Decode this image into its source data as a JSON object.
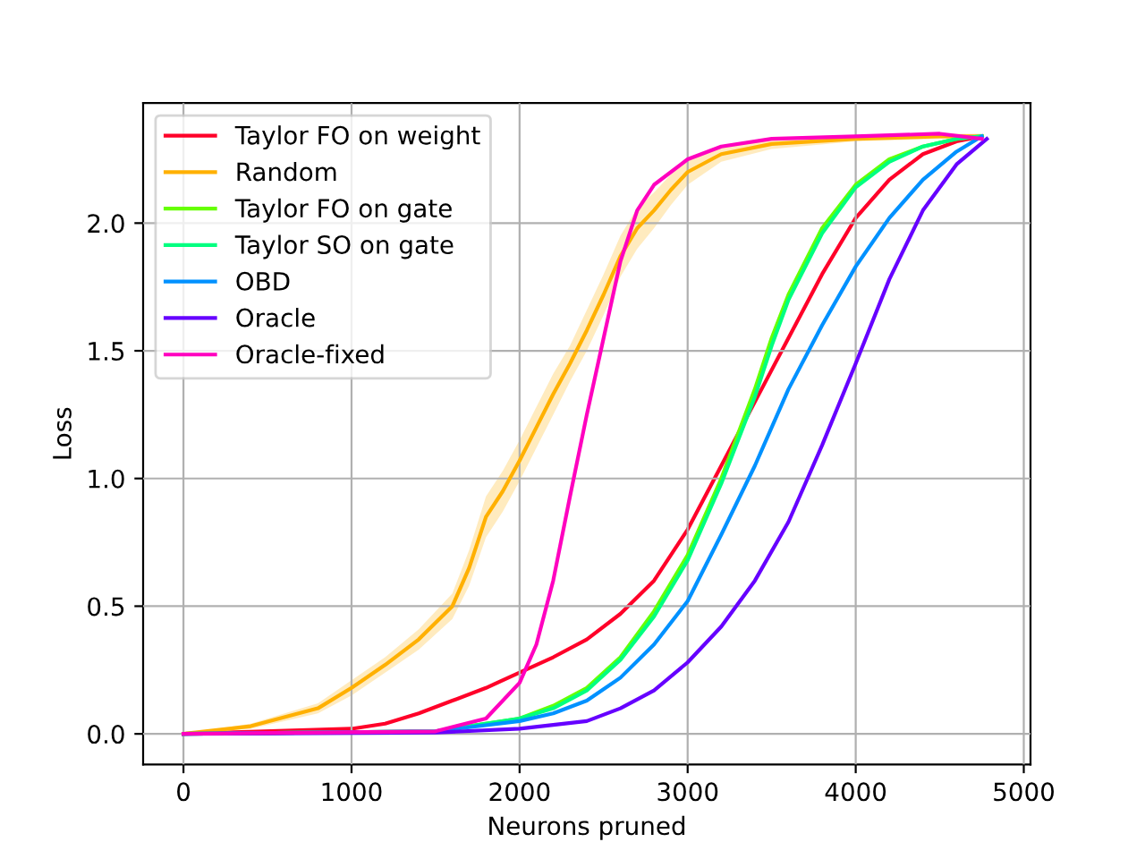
{
  "chart_data": {
    "type": "line",
    "xlabel": "Neurons pruned",
    "ylabel": "Loss",
    "xlim": [
      -240,
      5040
    ],
    "ylim": [
      -0.12,
      2.47
    ],
    "xticks": [
      0,
      1000,
      2000,
      3000,
      4000,
      5000
    ],
    "yticks": [
      {
        "value": 0,
        "label": "0.0"
      },
      {
        "value": 0.5,
        "label": "0.5"
      },
      {
        "value": 1,
        "label": "1.0"
      },
      {
        "value": 1.5,
        "label": "1.5"
      },
      {
        "value": 2,
        "label": "2.0"
      }
    ],
    "grid": true,
    "legend": "top left",
    "line_style": "solid",
    "marker": "none",
    "series": [
      {
        "name": "Taylor FO on weight",
        "color": "#ff0029",
        "x": [
          0,
          1000,
          1200,
          1400,
          1600,
          1800,
          2000,
          2200,
          2400,
          2600,
          2800,
          3000,
          3200,
          3400,
          3600,
          3800,
          4000,
          4200,
          4400,
          4600,
          4750
        ],
        "values": [
          0,
          0.02,
          0.04,
          0.08,
          0.13,
          0.18,
          0.24,
          0.3,
          0.37,
          0.47,
          0.6,
          0.8,
          1.05,
          1.3,
          1.55,
          1.8,
          2.02,
          2.17,
          2.27,
          2.32,
          2.34
        ]
      },
      {
        "name": "Random",
        "color": "#ffb000",
        "x": [
          0,
          400,
          800,
          1000,
          1200,
          1400,
          1600,
          1700,
          1800,
          1900,
          2000,
          2100,
          2200,
          2300,
          2400,
          2500,
          2600,
          2700,
          2800,
          2900,
          3000,
          3200,
          3500,
          4000,
          4500,
          4750
        ],
        "values": [
          0,
          0.03,
          0.1,
          0.18,
          0.27,
          0.37,
          0.5,
          0.65,
          0.85,
          0.95,
          1.07,
          1.2,
          1.33,
          1.45,
          1.58,
          1.72,
          1.87,
          1.98,
          2.05,
          2.13,
          2.2,
          2.27,
          2.31,
          2.33,
          2.34,
          2.34
        ],
        "lower": [
          0,
          0.02,
          0.08,
          0.15,
          0.24,
          0.33,
          0.45,
          0.58,
          0.77,
          0.87,
          0.99,
          1.12,
          1.25,
          1.38,
          1.5,
          1.64,
          1.79,
          1.9,
          1.98,
          2.07,
          2.15,
          2.24,
          2.29,
          2.32,
          2.33,
          2.33
        ],
        "upper": [
          0,
          0.04,
          0.12,
          0.21,
          0.3,
          0.41,
          0.55,
          0.72,
          0.93,
          1.03,
          1.15,
          1.28,
          1.41,
          1.52,
          1.66,
          1.8,
          1.95,
          2.06,
          2.12,
          2.19,
          2.25,
          2.3,
          2.33,
          2.34,
          2.35,
          2.35
        ]
      },
      {
        "name": "Taylor FO on gate",
        "color": "#66ff00",
        "x": [
          0,
          1500,
          2000,
          2200,
          2400,
          2600,
          2800,
          3000,
          3200,
          3400,
          3500,
          3600,
          3800,
          4000,
          4200,
          4400,
          4600,
          4750
        ],
        "values": [
          0,
          0.01,
          0.06,
          0.11,
          0.18,
          0.3,
          0.48,
          0.7,
          1.0,
          1.35,
          1.55,
          1.72,
          1.98,
          2.15,
          2.25,
          2.3,
          2.33,
          2.34
        ]
      },
      {
        "name": "Taylor SO on gate",
        "color": "#00ff80",
        "x": [
          0,
          1500,
          2000,
          2200,
          2400,
          2600,
          2800,
          3000,
          3200,
          3400,
          3500,
          3600,
          3800,
          4000,
          4200,
          4400,
          4600,
          4750
        ],
        "values": [
          0,
          0.01,
          0.06,
          0.1,
          0.17,
          0.29,
          0.46,
          0.68,
          0.98,
          1.32,
          1.52,
          1.7,
          1.96,
          2.14,
          2.24,
          2.3,
          2.33,
          2.34
        ]
      },
      {
        "name": "OBD",
        "color": "#0091ff",
        "x": [
          0,
          1500,
          2000,
          2200,
          2400,
          2600,
          2800,
          3000,
          3200,
          3400,
          3600,
          3800,
          4000,
          4200,
          4400,
          4600,
          4750
        ],
        "values": [
          0,
          0.01,
          0.05,
          0.08,
          0.13,
          0.22,
          0.35,
          0.52,
          0.78,
          1.05,
          1.35,
          1.6,
          1.83,
          2.02,
          2.17,
          2.28,
          2.34
        ]
      },
      {
        "name": "Oracle",
        "color": "#6600ff",
        "x": [
          0,
          1500,
          2000,
          2400,
          2600,
          2800,
          3000,
          3200,
          3400,
          3600,
          3800,
          4000,
          4200,
          4400,
          4600,
          4780
        ],
        "values": [
          0,
          0.005,
          0.02,
          0.05,
          0.1,
          0.17,
          0.28,
          0.42,
          0.6,
          0.83,
          1.13,
          1.45,
          1.78,
          2.05,
          2.23,
          2.33
        ]
      },
      {
        "name": "Oracle-fixed",
        "color": "#ff00bf",
        "x": [
          0,
          1500,
          1800,
          2000,
          2100,
          2200,
          2300,
          2400,
          2500,
          2600,
          2700,
          2800,
          3000,
          3200,
          3500,
          4000,
          4500,
          4750
        ],
        "values": [
          0,
          0.01,
          0.06,
          0.2,
          0.35,
          0.6,
          0.93,
          1.25,
          1.55,
          1.85,
          2.05,
          2.15,
          2.25,
          2.3,
          2.33,
          2.34,
          2.35,
          2.33
        ]
      }
    ]
  }
}
